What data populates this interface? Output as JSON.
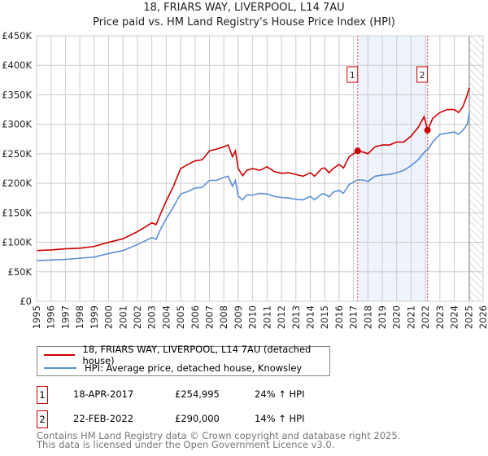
{
  "title": "18, FRIARS WAY, LIVERPOOL, L14 7AU",
  "subtitle": "Price paid vs. HM Land Registry's House Price Index (HPI)",
  "chart_data": {
    "type": "line",
    "title": "18, FRIARS WAY, LIVERPOOL, L14 7AU — Price paid vs. HM Land Registry's House Price Index (HPI)",
    "xlim": [
      1995,
      2026
    ],
    "ylim": [
      0,
      450000
    ],
    "y_ticks": [
      "£0",
      "£50K",
      "£100K",
      "£150K",
      "£200K",
      "£250K",
      "£300K",
      "£350K",
      "£400K",
      "£450K"
    ],
    "x_ticks": [
      "1995",
      "1996",
      "1997",
      "1998",
      "1999",
      "2000",
      "2001",
      "2002",
      "2003",
      "2004",
      "2005",
      "2006",
      "2007",
      "2008",
      "2009",
      "2010",
      "2011",
      "2012",
      "2013",
      "2014",
      "2015",
      "2016",
      "2017",
      "2018",
      "2019",
      "2020",
      "2021",
      "2022",
      "2023",
      "2024",
      "2025",
      "2026"
    ],
    "grid": true,
    "series": [
      {
        "name": "18, FRIARS WAY, LIVERPOOL, L14 7AU (detached house)",
        "color": "#cc0000",
        "x": [
          1995,
          1996,
          1997,
          1998,
          1999,
          2000,
          2001,
          2002,
          2003,
          2003.3,
          2003.6,
          2004,
          2004.5,
          2005,
          2005.5,
          2006,
          2006.5,
          2007,
          2007.5,
          2008,
          2008.3,
          2008.6,
          2008.8,
          2009,
          2009.3,
          2009.6,
          2010,
          2010.5,
          2011,
          2011.5,
          2012,
          2012.5,
          2013,
          2013.5,
          2014,
          2014.3,
          2014.8,
          2015,
          2015.3,
          2015.6,
          2016,
          2016.3,
          2016.7,
          2017.3,
          2017.8,
          2018,
          2018.5,
          2019,
          2019.5,
          2020,
          2020.5,
          2021,
          2021.5,
          2021.9,
          2022.15,
          2022.5,
          2023,
          2023.5,
          2024,
          2024.3,
          2024.6,
          2024.9,
          2025.05
        ],
        "y": [
          86,
          87,
          89,
          90,
          93,
          100,
          106,
          118,
          133,
          130,
          148,
          170,
          195,
          225,
          232,
          238,
          240,
          255,
          258,
          262,
          265,
          245,
          255,
          225,
          213,
          222,
          225,
          222,
          228,
          220,
          217,
          218,
          215,
          212,
          218,
          212,
          225,
          226,
          218,
          225,
          232,
          226,
          245,
          255,
          252,
          250,
          262,
          265,
          265,
          270,
          270,
          280,
          295,
          313,
          290,
          310,
          320,
          325,
          325,
          320,
          330,
          350,
          362
        ]
      },
      {
        "name": "HPI: Average price, detached house, Knowsley",
        "color": "#5b8fd6",
        "x": [
          1995,
          1996,
          1997,
          1998,
          1999,
          2000,
          2001,
          2002,
          2003,
          2003.3,
          2003.6,
          2004,
          2004.5,
          2005,
          2005.5,
          2006,
          2006.5,
          2007,
          2007.5,
          2008,
          2008.3,
          2008.6,
          2008.8,
          2009,
          2009.3,
          2009.6,
          2010,
          2010.5,
          2011,
          2011.5,
          2012,
          2012.5,
          2013,
          2013.5,
          2014,
          2014.3,
          2014.8,
          2015,
          2015.3,
          2015.6,
          2016,
          2016.3,
          2016.7,
          2017.3,
          2017.8,
          2018,
          2018.5,
          2019,
          2019.5,
          2020,
          2020.5,
          2021,
          2021.5,
          2022,
          2022.2,
          2022.5,
          2023,
          2023.5,
          2024,
          2024.3,
          2024.6,
          2024.9,
          2025.05
        ],
        "y": [
          69,
          70,
          71,
          73,
          75,
          81,
          86,
          96,
          108,
          105,
          122,
          140,
          160,
          182,
          186,
          192,
          193,
          205,
          205,
          210,
          212,
          195,
          205,
          178,
          172,
          180,
          180,
          183,
          182,
          178,
          176,
          175,
          173,
          172,
          178,
          172,
          182,
          182,
          177,
          185,
          188,
          183,
          198,
          206,
          205,
          203,
          212,
          214,
          215,
          218,
          222,
          230,
          240,
          255,
          258,
          270,
          283,
          285,
          287,
          283,
          290,
          300,
          320
        ]
      }
    ],
    "y_units": "thousand GBP",
    "sales": [
      {
        "label": "1",
        "x": 2017.29,
        "y": 254.995
      },
      {
        "label": "2",
        "x": 2022.14,
        "y": 290
      }
    ],
    "shaded_range": [
      2017.29,
      2022.14
    ],
    "forecast_hatch_from": 2025.05,
    "legend_placement": "below"
  },
  "legend": [
    "18, FRIARS WAY, LIVERPOOL, L14 7AU (detached house)",
    "HPI: Average price, detached house, Knowsley"
  ],
  "transactions": [
    {
      "num": "1",
      "date": "18-APR-2017",
      "price": "£254,995",
      "hpi": "24% ↑ HPI"
    },
    {
      "num": "2",
      "date": "22-FEB-2022",
      "price": "£290,000",
      "hpi": "14% ↑ HPI"
    }
  ],
  "footer": [
    "Contains HM Land Registry data © Crown copyright and database right 2025.",
    "This data is licensed under the Open Government Licence v3.0."
  ]
}
